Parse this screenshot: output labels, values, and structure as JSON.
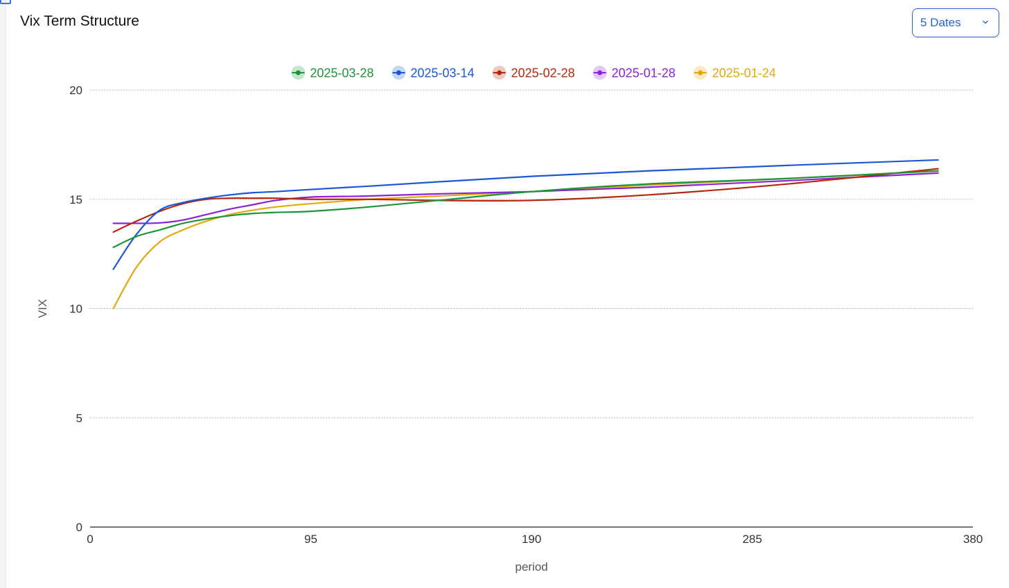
{
  "header": {
    "title": "Vix Term Structure",
    "dates_select_value": "5 Dates"
  },
  "chart_data": {
    "type": "line",
    "title": "Vix Term Structure",
    "xlabel": "period",
    "ylabel": "VIX",
    "xlim": [
      0,
      380
    ],
    "ylim": [
      0,
      20
    ],
    "xticks": [
      0,
      95,
      190,
      285,
      380
    ],
    "yticks": [
      0,
      5,
      10,
      15,
      20
    ],
    "grid": true,
    "legend_position": "top-center",
    "series": [
      {
        "name": "2025-03-28",
        "color": "#1e9438",
        "x": [
          10,
          20,
          30,
          40,
          50,
          60,
          70,
          80,
          95,
          120,
          150,
          190,
          240,
          300,
          365
        ],
        "y": [
          12.8,
          13.3,
          13.6,
          13.9,
          14.1,
          14.25,
          14.35,
          14.4,
          14.45,
          14.65,
          14.95,
          15.35,
          15.7,
          15.95,
          16.3
        ]
      },
      {
        "name": "2025-03-14",
        "color": "#1a56d6",
        "x": [
          10,
          20,
          30,
          40,
          50,
          60,
          70,
          80,
          95,
          120,
          150,
          190,
          240,
          300,
          365
        ],
        "y": [
          11.8,
          13.4,
          14.5,
          14.85,
          15.05,
          15.2,
          15.3,
          15.35,
          15.45,
          15.6,
          15.8,
          16.05,
          16.3,
          16.55,
          16.8
        ]
      },
      {
        "name": "2025-02-28",
        "color": "#b3280e",
        "x": [
          10,
          20,
          30,
          40,
          50,
          60,
          70,
          80,
          95,
          120,
          150,
          190,
          240,
          300,
          365
        ],
        "y": [
          13.5,
          14.0,
          14.45,
          14.8,
          15.0,
          15.05,
          15.05,
          15.05,
          15.0,
          15.0,
          14.95,
          14.95,
          15.2,
          15.7,
          16.4
        ]
      },
      {
        "name": "2025-01-28",
        "color": "#8a22d8",
        "x": [
          10,
          20,
          30,
          40,
          50,
          60,
          70,
          80,
          95,
          120,
          150,
          190,
          240,
          300,
          365
        ],
        "y": [
          13.9,
          13.9,
          13.92,
          14.05,
          14.3,
          14.55,
          14.75,
          14.95,
          15.1,
          15.15,
          15.25,
          15.35,
          15.55,
          15.85,
          16.2
        ]
      },
      {
        "name": "2025-01-24",
        "color": "#e3a80e",
        "x": [
          10,
          20,
          30,
          40,
          50,
          60,
          70,
          80,
          95,
          120,
          150,
          190,
          240,
          300,
          365
        ],
        "y": [
          10.0,
          11.9,
          13.05,
          13.6,
          14.0,
          14.3,
          14.5,
          14.65,
          14.8,
          15.0,
          15.15,
          15.35,
          15.65,
          15.95,
          16.3
        ]
      }
    ]
  }
}
